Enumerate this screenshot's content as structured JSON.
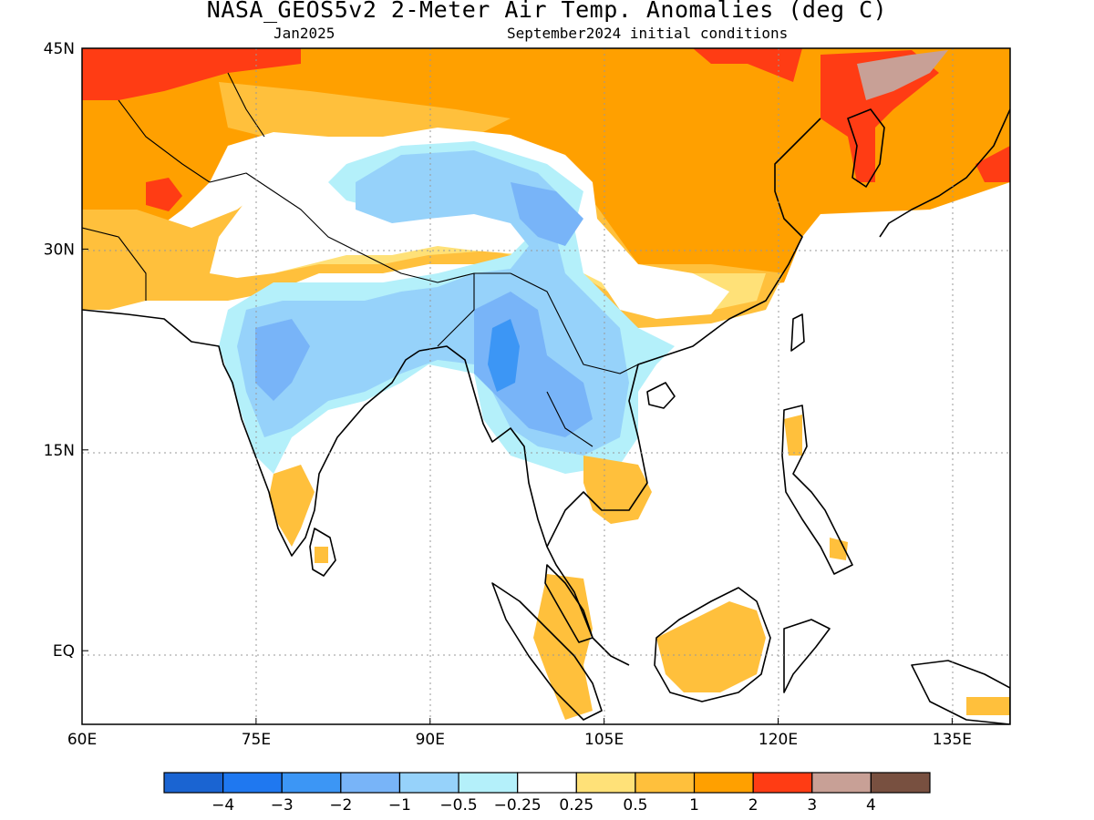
{
  "header": {
    "title": "NASA_GEOS5v2 2-Meter Air Temp. Anomalies (deg C)",
    "subtitle_left": "Jan2025",
    "subtitle_right": "September2024 initial conditions"
  },
  "map": {
    "lon_range": [
      60,
      140
    ],
    "lat_range": [
      -5.5,
      45
    ],
    "lon_ticks": [
      {
        "value": 60,
        "label": "60E"
      },
      {
        "value": 75,
        "label": "75E"
      },
      {
        "value": 90,
        "label": "90E"
      },
      {
        "value": 105,
        "label": "105E"
      },
      {
        "value": 120,
        "label": "120E"
      },
      {
        "value": 135,
        "label": "135E"
      }
    ],
    "lat_ticks": [
      {
        "value": 45,
        "label": "45N"
      },
      {
        "value": 30,
        "label": "30N"
      },
      {
        "value": 15,
        "label": "15N"
      },
      {
        "value": 0,
        "label": "EQ"
      }
    ],
    "grid": "dotted"
  },
  "colorbar": {
    "colors": [
      "#1a64d2",
      "#1f78f0",
      "#3c96f5",
      "#78b4f8",
      "#96d2fa",
      "#b4f0fa",
      "#ffffff",
      "#ffe178",
      "#ffc03c",
      "#ffa000",
      "#ff3c14",
      "#c8a096",
      "#785040"
    ],
    "labels": [
      "-4",
      "-3",
      "-2",
      "-1",
      "-0.5",
      "-0.25",
      "0.25",
      "0.5",
      "1",
      "2",
      "3",
      "4"
    ]
  },
  "palette": {
    "ocean": "#ffffff",
    "coast": "#000000"
  }
}
